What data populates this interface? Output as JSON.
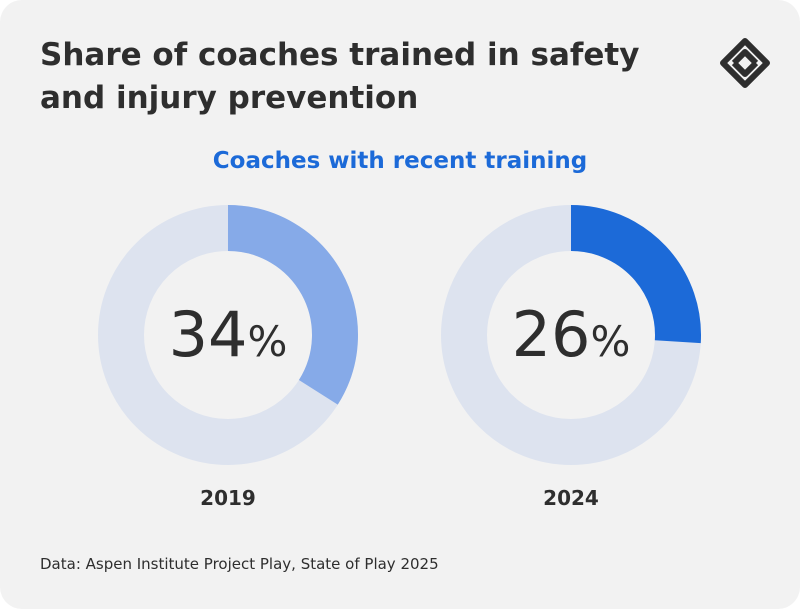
{
  "title": "Share of coaches trained in safety and injury prevention",
  "subtitle": "Coaches with recent training",
  "source": "Data: Aspen Institute Project Play, State of Play 2025",
  "logo_icon": "interlocking-diamond-logo-icon",
  "colors": {
    "track": "#dde3ef",
    "series_2019": "#86aae8",
    "series_2024": "#1c6ad8",
    "text": "#2e2e2e",
    "accent": "#1c6ad8"
  },
  "chart_data": {
    "type": "pie",
    "subtype": "donut",
    "title": "Share of coaches trained in safety and injury prevention",
    "subtitle": "Coaches with recent training",
    "unit": "%",
    "categories": [
      "2019",
      "2024"
    ],
    "values": [
      34,
      26
    ]
  }
}
